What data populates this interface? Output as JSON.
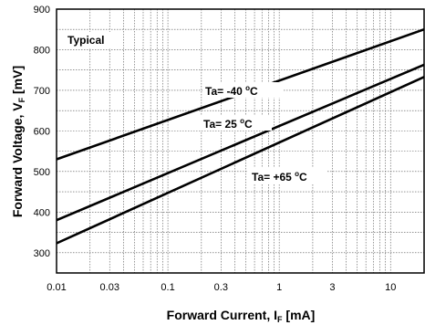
{
  "chart_data": {
    "type": "line",
    "x_scale": "log",
    "xlim": [
      0.01,
      20
    ],
    "ylim": [
      250,
      900
    ],
    "grid": true,
    "x_ticks": [
      0.01,
      0.03,
      0.1,
      0.3,
      1,
      3,
      10
    ],
    "x_tick_labels": [
      "0.01",
      "0.03",
      "0.1",
      "0.3",
      "1",
      "3",
      "10"
    ],
    "y_ticks": [
      300,
      400,
      500,
      600,
      700,
      800,
      900
    ],
    "y_tick_labels": [
      "300",
      "400",
      "500",
      "600",
      "700",
      "800",
      "900"
    ],
    "xlabel": {
      "main": "Forward Current, I",
      "sub": "F",
      "unit": " [mA]"
    },
    "ylabel": {
      "main": "Forward Voltage, V",
      "sub": "F",
      "unit": " [mV]"
    },
    "annotation": "Typical",
    "series": [
      {
        "name": "Ta= -40 °C",
        "x": [
          0.01,
          20
        ],
        "y": [
          530,
          850
        ]
      },
      {
        "name": "Ta= 25 °C",
        "x": [
          0.01,
          20
        ],
        "y": [
          380,
          763
        ]
      },
      {
        "name": "Ta= +65 °C",
        "x": [
          0.01,
          20
        ],
        "y": [
          323,
          733
        ]
      }
    ],
    "series_label_parts": [
      {
        "prefix": "Ta= -40 ",
        "deg": "o",
        "unit": "C"
      },
      {
        "prefix": "Ta= 25 ",
        "deg": "o",
        "unit": "C"
      },
      {
        "prefix": "Ta= +65 ",
        "deg": "o",
        "unit": "C"
      }
    ]
  }
}
